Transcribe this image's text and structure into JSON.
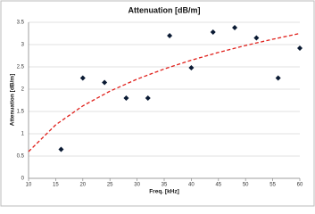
{
  "chart_data": {
    "type": "scatter",
    "title": "Attenuation [dB/m]",
    "x_label": "Freq. [kHz]",
    "y_label": "Attenuation [dB/m]",
    "xlim": [
      10,
      60
    ],
    "xticks": [
      10,
      15,
      20,
      25,
      30,
      35,
      40,
      45,
      50,
      55,
      60
    ],
    "ylim": [
      0,
      3.5
    ],
    "yticks": [
      0,
      0.5,
      1,
      1.5,
      2,
      2.5,
      3,
      3.5
    ],
    "grid": true,
    "series": [
      {
        "color": "#0a1a33",
        "marker": "diamond",
        "x": [
          16,
          20,
          24,
          28,
          32,
          36,
          40,
          44,
          48,
          52,
          56,
          60
        ],
        "values": [
          0.65,
          2.25,
          2.15,
          1.8,
          1.8,
          3.2,
          2.48,
          3.28,
          3.38,
          3.15,
          2.25,
          2.92
        ]
      },
      {
        "color": "#e0201b",
        "line": "dashed",
        "x": [
          10,
          15,
          20,
          25,
          30,
          35,
          40,
          45,
          50,
          55,
          60
        ],
        "values": [
          0.6,
          1.2,
          1.625,
          1.955,
          2.225,
          2.453,
          2.65,
          2.824,
          2.98,
          3.12,
          3.25
        ]
      }
    ]
  }
}
